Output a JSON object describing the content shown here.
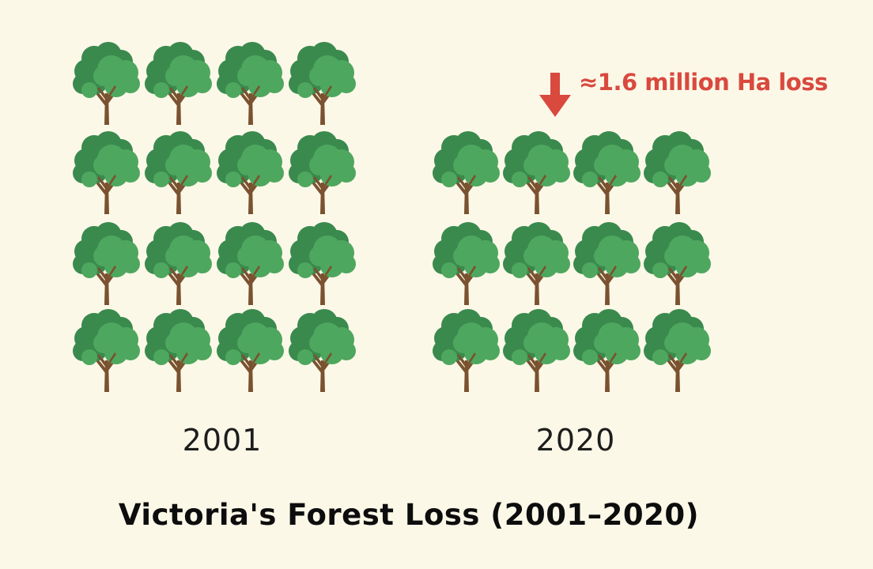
{
  "chart_data": {
    "type": "pictogram",
    "title": "Victoria's Forest Loss (2001–2020)",
    "categories": [
      "2001",
      "2020"
    ],
    "values": [
      16,
      12
    ],
    "annotation": "≈1.6 million Ha loss",
    "icon": "tree-icon",
    "colors": {
      "foliage_dark": "#3a8a4e",
      "foliage_light": "#4ea75e",
      "trunk": "#7a5230",
      "annotation": "#d9493e",
      "background": "#fcf8e8"
    }
  }
}
